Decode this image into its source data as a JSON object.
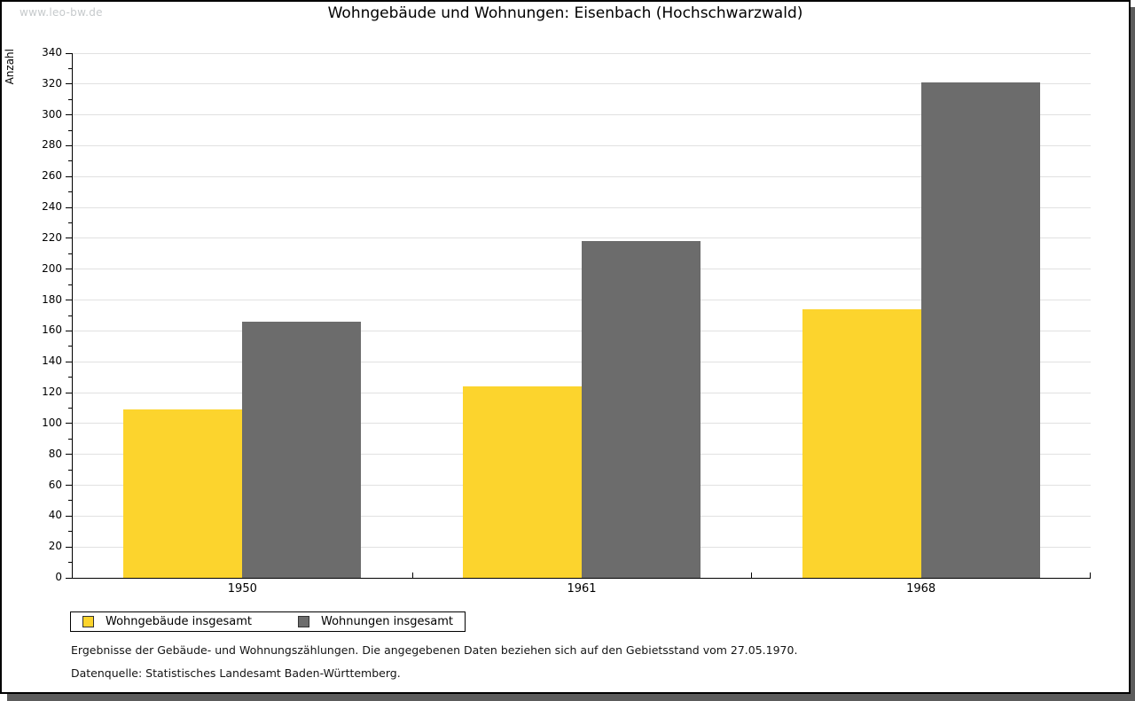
{
  "watermark": "www.leo-bw.de",
  "title": "Wohngebäude und Wohnungen: Eisenbach (Hochschwarzwald)",
  "chart_data": {
    "type": "bar",
    "title": "Wohngebäude und Wohnungen: Eisenbach (Hochschwarzwald)",
    "xlabel": "",
    "ylabel": "Anzahl",
    "categories": [
      "1950",
      "1961",
      "1968"
    ],
    "series": [
      {
        "name": "Wohngebäude insgesamt",
        "color": "#fcd42d",
        "values": [
          109,
          124,
          174
        ]
      },
      {
        "name": "Wohnungen insgesamt",
        "color": "#6c6c6c",
        "values": [
          166,
          218,
          321
        ]
      }
    ],
    "ylim": [
      0,
      340
    ],
    "ytick_step": 20,
    "ytick_minor_step": 10,
    "grid": true,
    "legend_position": "bottom-left"
  },
  "footer": {
    "line1": "Ergebnisse der Gebäude- und Wohnungszählungen. Die angegebenen Daten beziehen sich auf den Gebietsstand vom 27.05.1970.",
    "line2": "Datenquelle: Statistisches Landesamt Baden-Württemberg."
  },
  "colors": {
    "bar_yellow": "#fcd42d",
    "bar_gray": "#6c6c6c",
    "gridline": "#e1e1e1",
    "axis": "#000000",
    "shadow": "#5c5c5c",
    "watermark": "#c6cacc"
  }
}
